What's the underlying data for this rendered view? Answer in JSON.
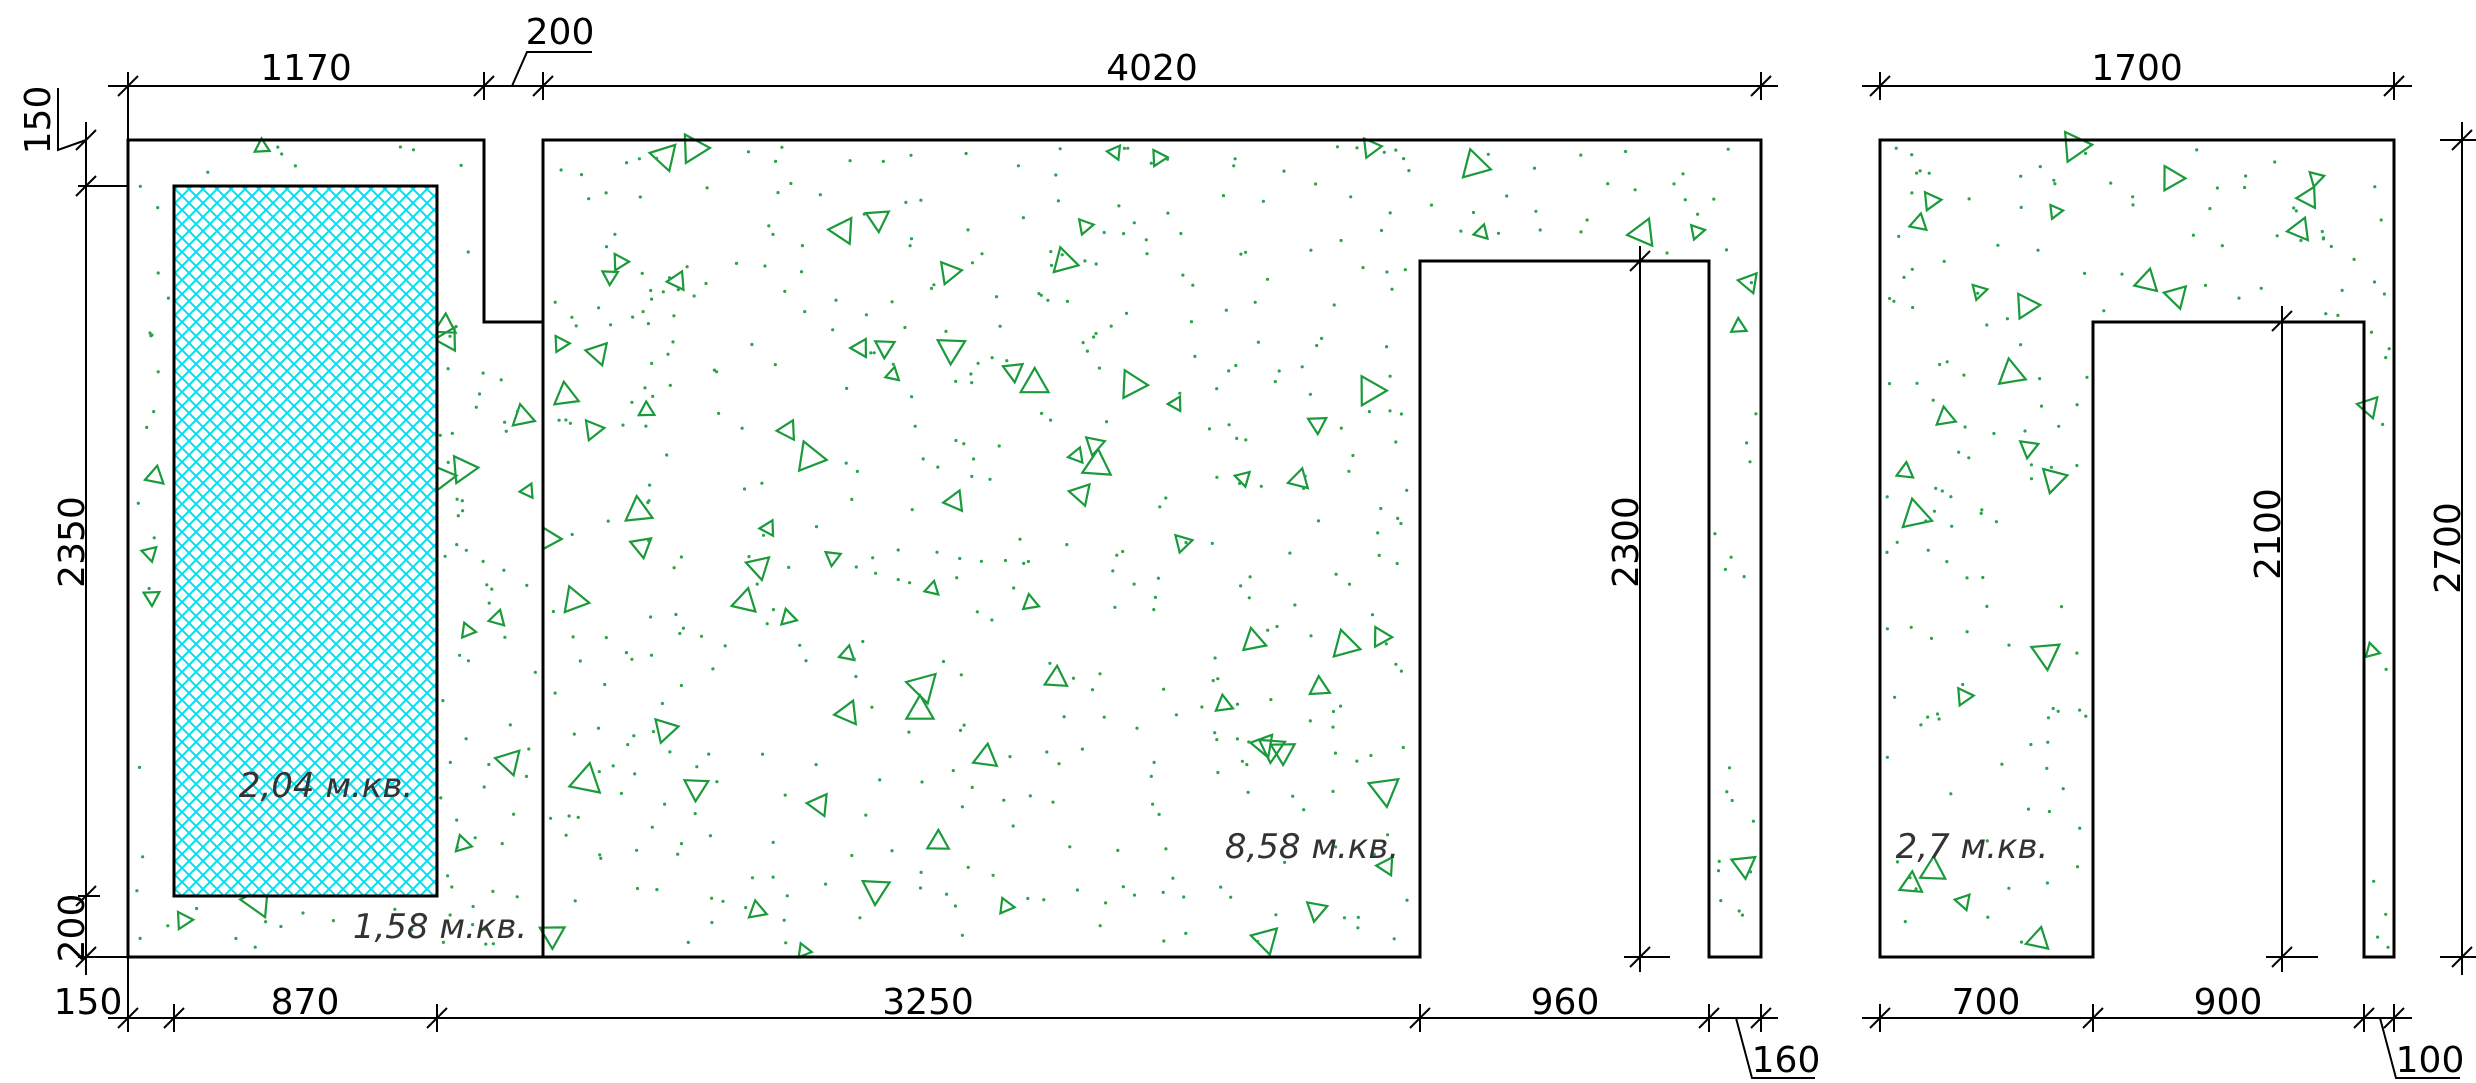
{
  "dimensions": {
    "top_1170": "1170",
    "top_200": "200",
    "top_4020": "4020",
    "top_1700": "1700",
    "left_150": "150",
    "left_2350": "2350",
    "left_200": "200",
    "bottom_150": "150",
    "bottom_870": "870",
    "bottom_3250": "3250",
    "bottom_960": "960",
    "bottom_160": "160",
    "bottom_700": "700",
    "bottom_900": "900",
    "bottom_100": "100",
    "door1_height": "2300",
    "door2_height": "2100",
    "right_2700": "2700"
  },
  "areas": {
    "window_area": "2,04  м.кв.",
    "left_panel_area": "1,58  м.кв.",
    "middle_panel_area": "8,58  м.кв.",
    "right_panel_area": "2,7  м.кв."
  },
  "colors": {
    "line": "#000000",
    "concrete_pattern": "#1a9a3a",
    "window_hatch": "#00e5f0"
  }
}
